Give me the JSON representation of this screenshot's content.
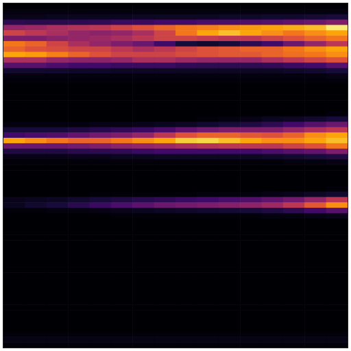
{
  "chart_data": {
    "type": "heatmap",
    "tick_labels": false,
    "zlim": [
      0,
      100
    ],
    "cells": [
      [
        0,
        0,
        0,
        0,
        0,
        0,
        0,
        0,
        0,
        0,
        0,
        0,
        0,
        0,
        0,
        0
      ],
      [
        2,
        2,
        2,
        2,
        2,
        2,
        2,
        2,
        2,
        2,
        2,
        2,
        2,
        2,
        2,
        2
      ],
      [
        4,
        4,
        5,
        5,
        5,
        5,
        6,
        6,
        6,
        6,
        7,
        7,
        8,
        8,
        9,
        10
      ],
      [
        15,
        14,
        14,
        15,
        16,
        18,
        18,
        20,
        20,
        22,
        22,
        24,
        25,
        28,
        30,
        35
      ],
      [
        40,
        42,
        45,
        48,
        50,
        55,
        60,
        65,
        70,
        72,
        75,
        78,
        80,
        82,
        85,
        95
      ],
      [
        55,
        50,
        45,
        40,
        38,
        40,
        45,
        55,
        70,
        80,
        85,
        80,
        75,
        70,
        75,
        80
      ],
      [
        35,
        35,
        38,
        40,
        42,
        45,
        50,
        55,
        55,
        52,
        50,
        50,
        55,
        60,
        65,
        70
      ],
      [
        70,
        65,
        55,
        45,
        40,
        35,
        30,
        20,
        10,
        8,
        10,
        15,
        20,
        30,
        40,
        50
      ],
      [
        65,
        60,
        58,
        55,
        55,
        50,
        45,
        50,
        55,
        60,
        62,
        65,
        65,
        70,
        75,
        80
      ],
      [
        80,
        78,
        72,
        65,
        60,
        55,
        55,
        55,
        58,
        60,
        62,
        62,
        65,
        68,
        70,
        75
      ],
      [
        45,
        45,
        40,
        38,
        38,
        40,
        45,
        45,
        42,
        40,
        40,
        40,
        45,
        50,
        55,
        60
      ],
      [
        25,
        25,
        22,
        20,
        20,
        18,
        18,
        18,
        16,
        15,
        15,
        15,
        16,
        18,
        20,
        25
      ],
      [
        8,
        8,
        8,
        7,
        7,
        6,
        6,
        6,
        6,
        6,
        6,
        6,
        6,
        7,
        8,
        10
      ],
      [
        2,
        2,
        2,
        2,
        2,
        2,
        2,
        2,
        2,
        2,
        2,
        2,
        2,
        2,
        2,
        3
      ],
      [
        1,
        1,
        1,
        1,
        1,
        1,
        1,
        1,
        1,
        1,
        1,
        1,
        1,
        1,
        1,
        1
      ],
      [
        0,
        0,
        0,
        0,
        0,
        0,
        0,
        0,
        0,
        0,
        0,
        0,
        0,
        0,
        0,
        0
      ],
      [
        0,
        0,
        0,
        0,
        0,
        0,
        0,
        0,
        0,
        0,
        0,
        0,
        0,
        0,
        0,
        0
      ],
      [
        0,
        0,
        0,
        0,
        0,
        0,
        0,
        0,
        0,
        0,
        0,
        0,
        0,
        0,
        0,
        0
      ],
      [
        0,
        0,
        0,
        0,
        0,
        0,
        0,
        0,
        0,
        0,
        0,
        0,
        0,
        0,
        0,
        0
      ],
      [
        0,
        0,
        0,
        0,
        0,
        0,
        0,
        0,
        0,
        0,
        0,
        0,
        0,
        0,
        0,
        0
      ],
      [
        0,
        0,
        0,
        0,
        0,
        0,
        0,
        0,
        0,
        0,
        0,
        0,
        0,
        0,
        0,
        1
      ],
      [
        0,
        0,
        0,
        0,
        0,
        0,
        0,
        0,
        0,
        1,
        2,
        3,
        5,
        6,
        8,
        10
      ],
      [
        2,
        2,
        2,
        2,
        3,
        3,
        4,
        5,
        6,
        8,
        10,
        12,
        15,
        20,
        25,
        30
      ],
      [
        10,
        10,
        10,
        12,
        14,
        16,
        18,
        22,
        28,
        32,
        35,
        35,
        35,
        40,
        45,
        50
      ],
      [
        20,
        22,
        24,
        28,
        32,
        35,
        40,
        50,
        60,
        65,
        65,
        62,
        60,
        65,
        75,
        80
      ],
      [
        80,
        75,
        70,
        65,
        65,
        70,
        75,
        80,
        88,
        90,
        85,
        80,
        75,
        75,
        80,
        85
      ],
      [
        30,
        30,
        30,
        32,
        35,
        38,
        40,
        42,
        45,
        48,
        50,
        50,
        50,
        55,
        60,
        70
      ],
      [
        12,
        12,
        12,
        14,
        15,
        16,
        18,
        20,
        20,
        20,
        20,
        20,
        22,
        25,
        28,
        35
      ],
      [
        3,
        3,
        3,
        4,
        4,
        5,
        5,
        6,
        6,
        6,
        6,
        6,
        7,
        8,
        10,
        12
      ],
      [
        1,
        1,
        1,
        1,
        1,
        1,
        1,
        1,
        1,
        1,
        1,
        1,
        1,
        2,
        2,
        3
      ],
      [
        0,
        0,
        0,
        0,
        0,
        0,
        0,
        0,
        0,
        0,
        0,
        0,
        0,
        0,
        0,
        0
      ],
      [
        0,
        0,
        0,
        0,
        0,
        0,
        0,
        0,
        0,
        0,
        0,
        0,
        0,
        0,
        0,
        0
      ],
      [
        0,
        0,
        0,
        0,
        0,
        0,
        0,
        0,
        0,
        0,
        0,
        0,
        0,
        0,
        0,
        0
      ],
      [
        0,
        0,
        0,
        0,
        0,
        0,
        0,
        0,
        0,
        0,
        0,
        0,
        0,
        0,
        0,
        0
      ],
      [
        0,
        0,
        0,
        0,
        0,
        0,
        0,
        0,
        0,
        0,
        0,
        0,
        0,
        0,
        0,
        1
      ],
      [
        0,
        0,
        0,
        0,
        1,
        1,
        1,
        1,
        1,
        2,
        2,
        2,
        3,
        4,
        6,
        8
      ],
      [
        4,
        5,
        6,
        8,
        10,
        12,
        14,
        16,
        18,
        20,
        22,
        24,
        28,
        32,
        40,
        50
      ],
      [
        5,
        8,
        10,
        14,
        18,
        22,
        26,
        30,
        32,
        34,
        36,
        38,
        42,
        50,
        62,
        75
      ],
      [
        1,
        1,
        2,
        2,
        3,
        4,
        5,
        6,
        7,
        8,
        9,
        10,
        12,
        15,
        20,
        25
      ],
      [
        0,
        0,
        0,
        0,
        0,
        1,
        1,
        1,
        1,
        1,
        1,
        1,
        2,
        2,
        3,
        4
      ],
      [
        0,
        0,
        0,
        0,
        0,
        0,
        0,
        0,
        0,
        0,
        0,
        0,
        0,
        0,
        0,
        0
      ],
      [
        0,
        0,
        0,
        0,
        0,
        0,
        0,
        0,
        0,
        0,
        0,
        0,
        0,
        0,
        0,
        0
      ],
      [
        0,
        0,
        0,
        0,
        0,
        0,
        0,
        0,
        0,
        0,
        0,
        0,
        0,
        0,
        0,
        0
      ],
      [
        0,
        0,
        0,
        0,
        0,
        0,
        0,
        0,
        0,
        0,
        0,
        0,
        0,
        0,
        0,
        0
      ],
      [
        0,
        0,
        0,
        0,
        0,
        0,
        0,
        0,
        0,
        0,
        0,
        0,
        0,
        0,
        0,
        0
      ],
      [
        0,
        0,
        0,
        0,
        0,
        0,
        0,
        0,
        0,
        0,
        0,
        0,
        0,
        0,
        0,
        0
      ],
      [
        0,
        0,
        0,
        0,
        0,
        0,
        0,
        0,
        0,
        0,
        0,
        0,
        0,
        0,
        0,
        0
      ],
      [
        0,
        0,
        0,
        0,
        0,
        0,
        0,
        0,
        0,
        0,
        0,
        0,
        0,
        0,
        0,
        0
      ],
      [
        0,
        0,
        0,
        0,
        0,
        0,
        0,
        0,
        0,
        0,
        0,
        0,
        0,
        0,
        0,
        0
      ],
      [
        0,
        0,
        0,
        0,
        0,
        0,
        0,
        0,
        0,
        0,
        0,
        0,
        0,
        0,
        0,
        0
      ],
      [
        0,
        0,
        0,
        0,
        0,
        0,
        0,
        0,
        0,
        0,
        0,
        0,
        0,
        0,
        0,
        0
      ],
      [
        0,
        0,
        0,
        0,
        0,
        0,
        0,
        0,
        0,
        0,
        0,
        0,
        0,
        0,
        0,
        0
      ],
      [
        0,
        0,
        0,
        0,
        0,
        0,
        0,
        0,
        0,
        0,
        0,
        0,
        0,
        0,
        0,
        0
      ],
      [
        0,
        0,
        0,
        0,
        0,
        0,
        0,
        0,
        0,
        0,
        0,
        0,
        0,
        0,
        0,
        0
      ],
      [
        0,
        0,
        0,
        0,
        0,
        0,
        0,
        0,
        0,
        0,
        0,
        0,
        0,
        0,
        0,
        0
      ],
      [
        0,
        0,
        0,
        0,
        0,
        0,
        0,
        0,
        0,
        0,
        0,
        0,
        0,
        0,
        0,
        0
      ],
      [
        0,
        0,
        0,
        0,
        0,
        0,
        0,
        0,
        0,
        0,
        0,
        0,
        0,
        0,
        0,
        0
      ],
      [
        0,
        0,
        0,
        0,
        0,
        0,
        0,
        0,
        0,
        0,
        0,
        0,
        0,
        0,
        0,
        0
      ],
      [
        0,
        0,
        0,
        0,
        0,
        0,
        0,
        0,
        0,
        0,
        0,
        0,
        0,
        0,
        0,
        0
      ],
      [
        0,
        0,
        0,
        0,
        0,
        0,
        0,
        0,
        0,
        0,
        0,
        0,
        0,
        0,
        0,
        0
      ],
      [
        0,
        0,
        0,
        0,
        0,
        0,
        0,
        0,
        0,
        0,
        0,
        0,
        0,
        0,
        0,
        0
      ],
      [
        1,
        1,
        1,
        1,
        1,
        1,
        1,
        1,
        1,
        1,
        1,
        1,
        1,
        1,
        1,
        1
      ],
      [
        3,
        3,
        3,
        3,
        3,
        3,
        3,
        3,
        3,
        3,
        3,
        3,
        3,
        3,
        3,
        3
      ],
      [
        1,
        1,
        1,
        1,
        1,
        1,
        1,
        1,
        1,
        1,
        1,
        1,
        1,
        1,
        1,
        1
      ]
    ]
  }
}
